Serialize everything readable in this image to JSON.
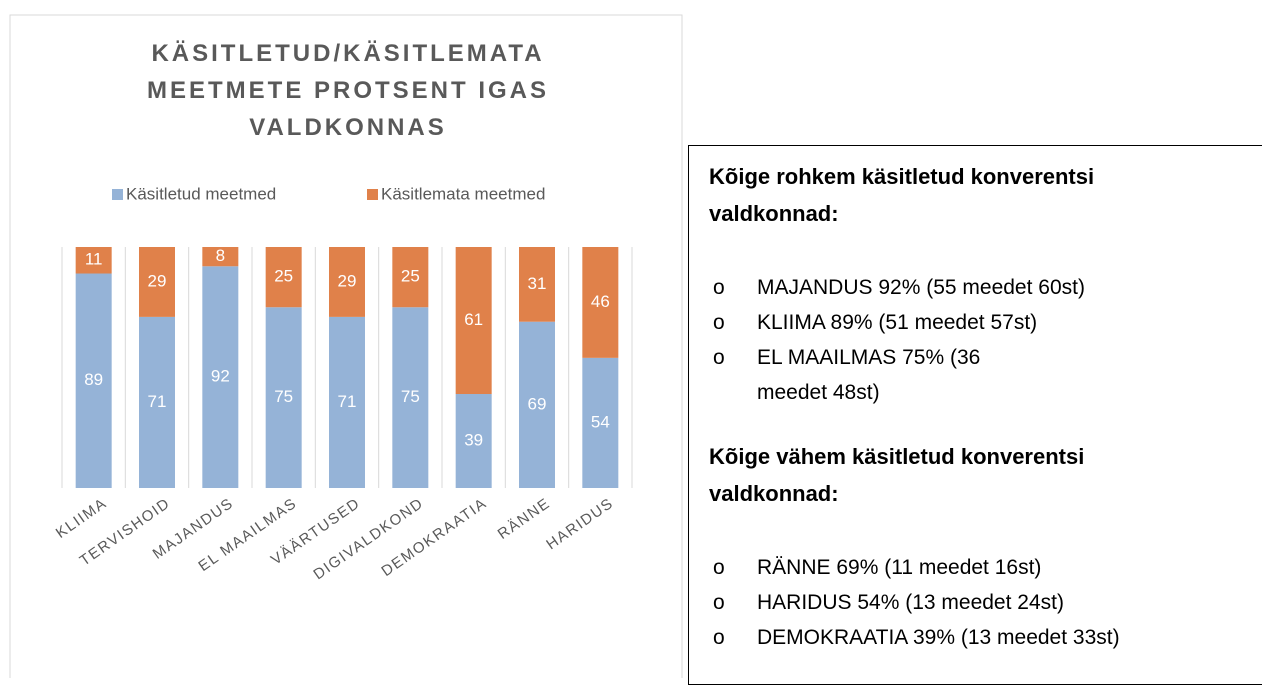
{
  "chart_data": {
    "type": "stacked_bar",
    "title": "KÄSITLETUD/KÄSITLEMATA MEETMETE PROTSENT IGAS VALDKONNAS",
    "categories": [
      "KLIIMA",
      "TERVISHOID",
      "MAJANDUS",
      "EL MAAILMAS",
      "VÄÄRTUSED",
      "DIGIVALDKOND",
      "DEMOKRAATIA",
      "RÄNNE",
      "HARIDUS"
    ],
    "series": [
      {
        "name": "Käsitletud meetmed",
        "color": "#95b3d7",
        "values": [
          89,
          71,
          92,
          75,
          71,
          75,
          39,
          69,
          54
        ]
      },
      {
        "name": "Käsitlemata meetmed",
        "color": "#e0814a",
        "values": [
          11,
          29,
          8,
          25,
          29,
          25,
          61,
          31,
          46
        ]
      }
    ],
    "ylim": [
      0,
      100
    ],
    "legend": "top"
  },
  "text_box": {
    "sections": [
      {
        "heading": "Kõige rohkem käsitletud konverentsi valdkonnad:",
        "items": [
          "MAJANDUS 92% (55 meedet 60st)",
          "KLIIMA 89% (51 meedet 57st)",
          "EL MAAILMAS 75% (36 meedet 48st)"
        ]
      },
      {
        "heading": "Kõige vähem käsitletud konverentsi valdkonnad:",
        "items": [
          "RÄNNE 69% (11 meedet 16st)",
          "HARIDUS 54% (13 meedet 24st)",
          "DEMOKRAATIA 39% (13 meedet 33st)"
        ]
      }
    ]
  }
}
